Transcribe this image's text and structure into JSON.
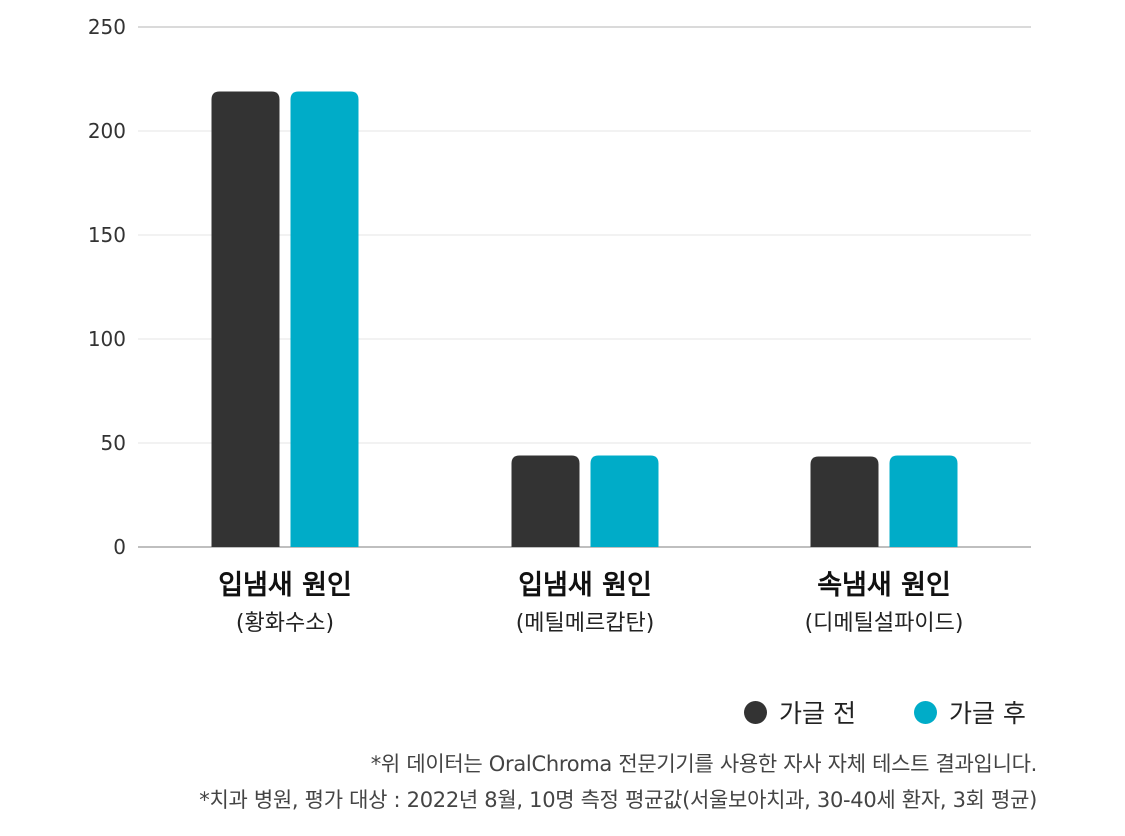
{
  "chart_data": {
    "type": "bar",
    "categories": [
      {
        "label": "입냄새 원인",
        "sublabel": "(황화수소)"
      },
      {
        "label": "입냄새 원인",
        "sublabel": "(메틸메르캅탄)"
      },
      {
        "label": "속냄새 원인",
        "sublabel": "(디메틸설파이드)"
      }
    ],
    "series": [
      {
        "name": "가글 전",
        "color": "#333333",
        "values": [
          219,
          44,
          43.5
        ]
      },
      {
        "name": "가글 후",
        "color": "#00acc8",
        "values": [
          219,
          44,
          44
        ]
      }
    ],
    "ylim": [
      0,
      250
    ],
    "yticks": [
      "0",
      "50",
      "100",
      "150",
      "200",
      "250"
    ],
    "grid": true,
    "legend_position": "bottom-right"
  },
  "notes": [
    "*위 데이터는 OralChroma 전문기기를 사용한 자사 자체 테스트 결과입니다.",
    "*치과 병원, 평가 대상 : 2022년 8월, 10명 측정 평균값(서울보아치과, 30-40세 환자, 3회 평균)"
  ]
}
